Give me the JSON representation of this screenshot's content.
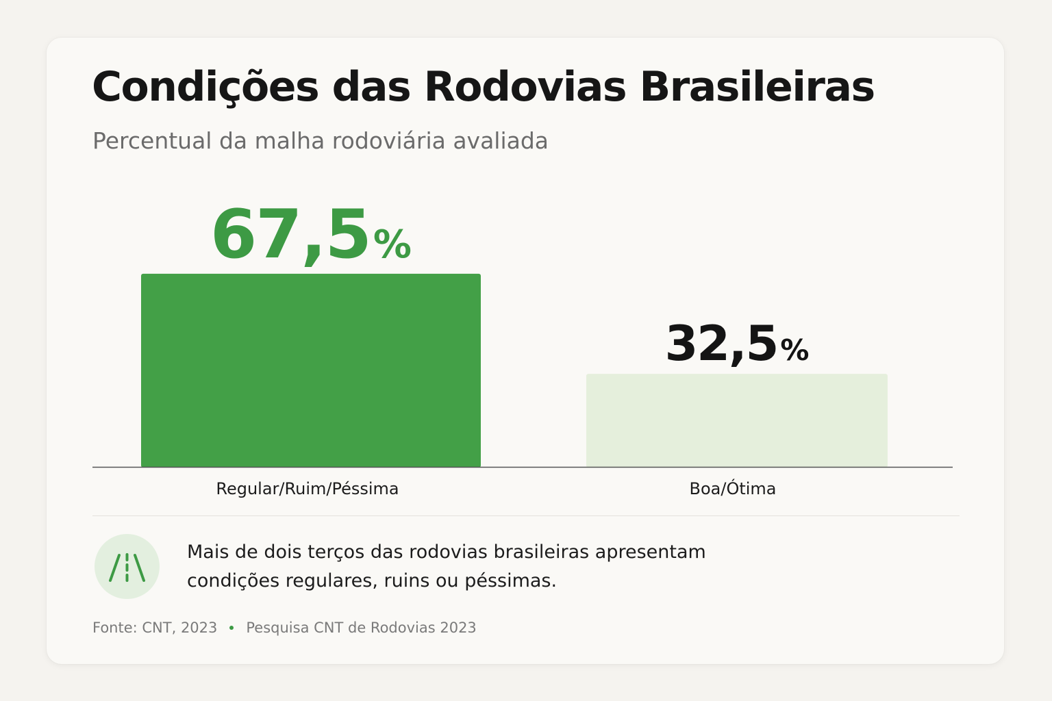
{
  "title": "Condições das Rodovias Brasileiras",
  "subtitle": "Percentual da malha rodoviária avaliada",
  "colors": {
    "primary_bar": "#43a047",
    "secondary_bar": "#e5efdc",
    "primary_value": "#3d9a44",
    "secondary_value": "#141414",
    "background": "#f5f3ef",
    "card": "#faf9f6"
  },
  "chart_data": {
    "type": "bar",
    "categories": [
      "Regular/Ruim/Péssima",
      "Boa/Ótima"
    ],
    "values": [
      67.5,
      32.5
    ],
    "value_labels": [
      "67,5",
      "32,5"
    ],
    "unit": "%",
    "ylim": [
      0,
      100
    ],
    "grid": false,
    "legend": "none"
  },
  "insight": {
    "icon": "road-icon",
    "text": "Mais de dois terços das rodovias brasileiras apresentam condições regulares, ruins ou péssimas."
  },
  "footer": {
    "source": "Fonte: CNT, 2023",
    "survey": "Pesquisa CNT de Rodovias 2023"
  }
}
